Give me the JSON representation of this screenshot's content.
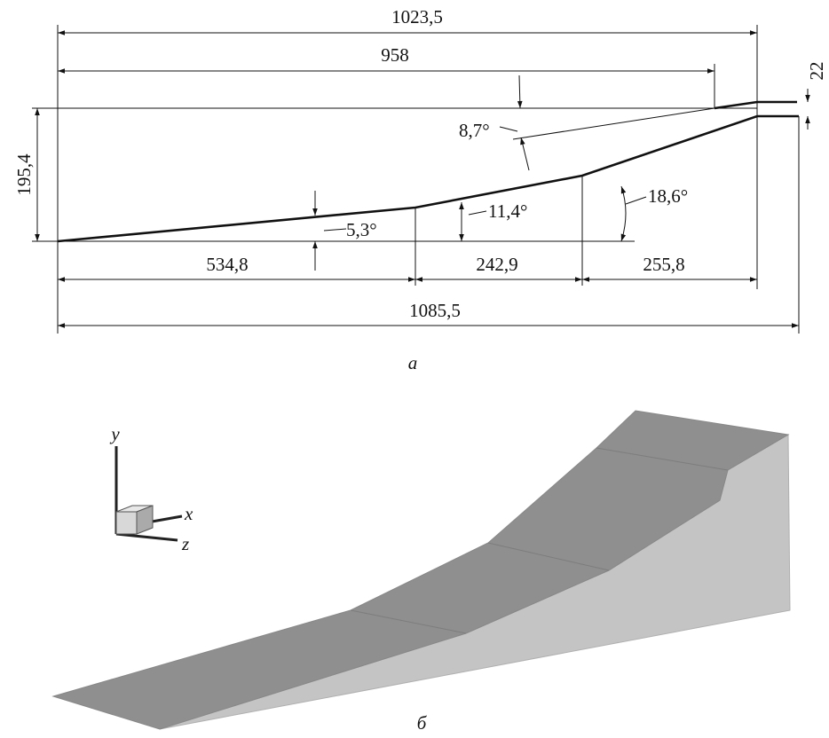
{
  "top_drawing": {
    "dimensions": {
      "overall_top": "1023,5",
      "upper_length": "958",
      "thickness": "22",
      "height": "195,4",
      "segment_1": "534,8",
      "segment_2": "242,9",
      "segment_3": "255,8",
      "overall_bottom": "1085,5"
    },
    "angles": {
      "angle_1": "5,3°",
      "angle_2": "11,4°",
      "angle_3": "18,6°",
      "angle_upper": "8,7°"
    },
    "caption": "а"
  },
  "bottom_drawing": {
    "axes": {
      "y": "y",
      "x": "x",
      "z": "z"
    },
    "caption": "б"
  }
}
